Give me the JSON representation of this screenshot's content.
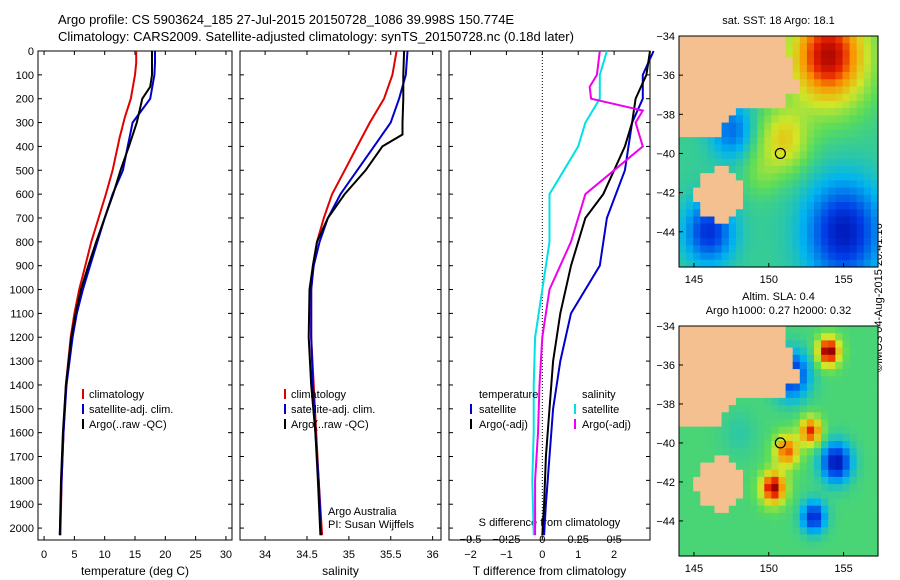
{
  "header": {
    "line1": "Argo profile: CS 5903624_185 27-Jul-2015 20150728_1086 39.998S 150.774E",
    "line2": "Climatology: CARS2009. Satellite-adjusted climatology: synTS_20150728.nc (0.18d later)"
  },
  "stamp": "©IMOS 04-Aug-2015 20:41:16",
  "colors": {
    "climatology": "#e00000",
    "satellite": "#0000cc",
    "argo": "#000000",
    "sat_salinity": "#00e0e8",
    "argo_salinity": "#ee00ee",
    "land": "#f5c090"
  },
  "depth_axis": {
    "ylim": [
      0,
      2050
    ],
    "ticks": [
      0,
      100,
      200,
      300,
      400,
      500,
      600,
      700,
      800,
      900,
      1000,
      1100,
      1200,
      1300,
      1400,
      1500,
      1600,
      1700,
      1800,
      1900,
      2000
    ]
  },
  "chart_data": [
    {
      "type": "line",
      "panel": "temperature",
      "xlabel": "temperature (deg C)",
      "xlim": [
        -1,
        31
      ],
      "xticks": [
        0,
        5,
        10,
        15,
        20,
        25,
        30
      ],
      "legend": [
        "climatology",
        "satellite-adj. clim.",
        "Argo(..raw -QC)"
      ],
      "series": [
        {
          "name": "climatology",
          "color": "#e00000",
          "depth": [
            0,
            50,
            100,
            200,
            280,
            330,
            360,
            500,
            600,
            700,
            800,
            900,
            1000,
            1100,
            1200,
            1400,
            1600,
            1800,
            2030
          ],
          "values": [
            15.2,
            15.2,
            15,
            14.3,
            13.3,
            12.8,
            12.5,
            11.3,
            10.2,
            9,
            7.8,
            6.8,
            5.8,
            5,
            4.4,
            3.6,
            3.2,
            2.9,
            2.7
          ]
        },
        {
          "name": "satellite-adj. clim.",
          "color": "#0000cc",
          "depth": [
            0,
            50,
            100,
            200,
            300,
            400,
            500,
            600,
            700,
            800,
            900,
            1000,
            1100,
            1200,
            1400,
            1600,
            1800,
            2030
          ],
          "values": [
            18.3,
            18.3,
            18.2,
            17.5,
            14.6,
            13.8,
            13,
            11.3,
            10,
            8.8,
            7.6,
            6.4,
            5.4,
            4.7,
            3.7,
            3.2,
            2.9,
            2.6
          ]
        },
        {
          "name": "Argo(..raw -QC)",
          "color": "#000000",
          "depth": [
            0,
            50,
            100,
            150,
            200,
            300,
            400,
            500,
            600,
            700,
            800,
            900,
            1000,
            1100,
            1200,
            1400,
            1600,
            1800,
            2030
          ],
          "values": [
            17.8,
            17.8,
            17.8,
            17.5,
            16.2,
            15.3,
            14,
            12.6,
            11.4,
            10,
            8.6,
            7.3,
            6.1,
            5.2,
            4.5,
            3.6,
            3.1,
            2.8,
            2.6
          ]
        }
      ]
    },
    {
      "type": "line",
      "panel": "salinity",
      "xlabel": "salinity",
      "xlim": [
        33.7,
        36.1
      ],
      "xticks": [
        34,
        34.5,
        35,
        35.5,
        36
      ],
      "legend": [
        "climatology",
        "satellite-adj. clim.",
        "Argo(..raw -QC)"
      ],
      "annotation": [
        "Argo Australia",
        "PI: Susan Wijffels"
      ],
      "series": [
        {
          "name": "climatology",
          "color": "#e00000",
          "depth": [
            0,
            100,
            200,
            300,
            400,
            500,
            600,
            700,
            800,
            900,
            1000,
            1200,
            1400,
            1600,
            1800,
            2030
          ],
          "values": [
            35.57,
            35.52,
            35.42,
            35.25,
            35.1,
            34.95,
            34.8,
            34.7,
            34.62,
            34.57,
            34.55,
            34.55,
            34.58,
            34.61,
            34.64,
            34.68
          ]
        },
        {
          "name": "satellite-adj. clim.",
          "color": "#0000cc",
          "depth": [
            0,
            100,
            200,
            300,
            400,
            500,
            600,
            700,
            800,
            900,
            1000,
            1200,
            1400,
            1600,
            1800,
            2030
          ],
          "values": [
            35.7,
            35.68,
            35.6,
            35.5,
            35.3,
            35.1,
            34.9,
            34.75,
            34.65,
            34.58,
            34.55,
            34.55,
            34.57,
            34.6,
            34.64,
            34.67
          ]
        },
        {
          "name": "Argo(..raw -QC)",
          "color": "#000000",
          "depth": [
            0,
            100,
            200,
            300,
            350,
            400,
            500,
            600,
            700,
            800,
            900,
            1000,
            1200,
            1400,
            1600,
            1800,
            2030
          ],
          "values": [
            35.66,
            35.65,
            35.65,
            35.64,
            35.64,
            35.4,
            35.2,
            34.95,
            34.75,
            34.62,
            34.57,
            34.53,
            34.52,
            34.55,
            34.6,
            34.63,
            34.66
          ]
        }
      ]
    },
    {
      "type": "line",
      "panel": "difference",
      "xlabel": "T difference from climatology",
      "xlabel2": "S difference from climatology",
      "xlim": [
        -2.6,
        3.0
      ],
      "xticks": [
        -2,
        -1,
        0,
        1,
        2
      ],
      "s_ticks": [
        -0.5,
        -0.25,
        0,
        0.25,
        0.5
      ],
      "legend_temperature": [
        "temperature",
        "satellite",
        "Argo(-adj)"
      ],
      "legend_salinity": [
        "salinity",
        "satellite",
        "Argo(-adj)"
      ],
      "series": [
        {
          "name": "satellite",
          "group": "temperature",
          "color": "#0000cc",
          "depth": [
            0,
            100,
            200,
            300,
            400,
            500,
            700,
            900,
            1100,
            1300,
            1500,
            1700,
            1900,
            2030
          ],
          "values": [
            3.1,
            2.8,
            2.8,
            2.5,
            2.4,
            2.3,
            1.8,
            1.6,
            0.8,
            0.5,
            0.3,
            0.2,
            0.1,
            0.05
          ]
        },
        {
          "name": "Argo(-adj)",
          "group": "temperature",
          "color": "#000000",
          "depth": [
            0,
            100,
            200,
            300,
            400,
            500,
            600,
            700,
            800,
            900,
            1100,
            1300,
            1500,
            1700,
            1900,
            2030
          ],
          "values": [
            3.0,
            2.9,
            2.6,
            2.5,
            2.3,
            2.0,
            1.7,
            1.2,
            1.0,
            0.8,
            0.5,
            0.3,
            0.2,
            0.1,
            0.05,
            0
          ]
        },
        {
          "name": "satellite",
          "group": "salinity",
          "color": "#00e0e8",
          "depth": [
            0,
            100,
            200,
            300,
            400,
            500,
            600,
            800,
            1000,
            1200,
            1400,
            1600,
            1800,
            2030
          ],
          "values": [
            0.45,
            0.4,
            0.4,
            0.3,
            0.25,
            0.15,
            0.05,
            0.05,
            0.0,
            -0.05,
            -0.06,
            -0.06,
            -0.07,
            -0.06
          ]
        },
        {
          "name": "Argo(-adj)",
          "group": "salinity",
          "color": "#ee00ee",
          "depth": [
            0,
            100,
            150,
            200,
            250,
            300,
            400,
            500,
            600,
            800,
            1000,
            1200,
            1400,
            1600,
            1800,
            2030
          ],
          "values": [
            0.4,
            0.38,
            0.33,
            0.34,
            0.7,
            0.65,
            0.7,
            0.5,
            0.3,
            0.2,
            0.05,
            0.0,
            -0.02,
            -0.03,
            -0.05,
            -0.05
          ]
        }
      ]
    }
  ],
  "maps": [
    {
      "title": "sat. SST: 18 Argo: 18.1",
      "field": "sst",
      "lon_ticks": [
        145,
        150,
        155
      ],
      "lat_ticks": [
        -34,
        -36,
        -38,
        -40,
        -42,
        -44
      ],
      "float": {
        "lon": 150.774,
        "lat": -39.998
      }
    },
    {
      "title": "Altim. SLA: 0.4",
      "subtitle": "Argo h1000: 0.27 h2000: 0.32",
      "field": "sla",
      "lon_ticks": [
        145,
        150,
        155
      ],
      "lat_ticks": [
        -34,
        -36,
        -38,
        -40,
        -42,
        -44
      ],
      "float": {
        "lon": 150.774,
        "lat": -39.998
      }
    }
  ]
}
